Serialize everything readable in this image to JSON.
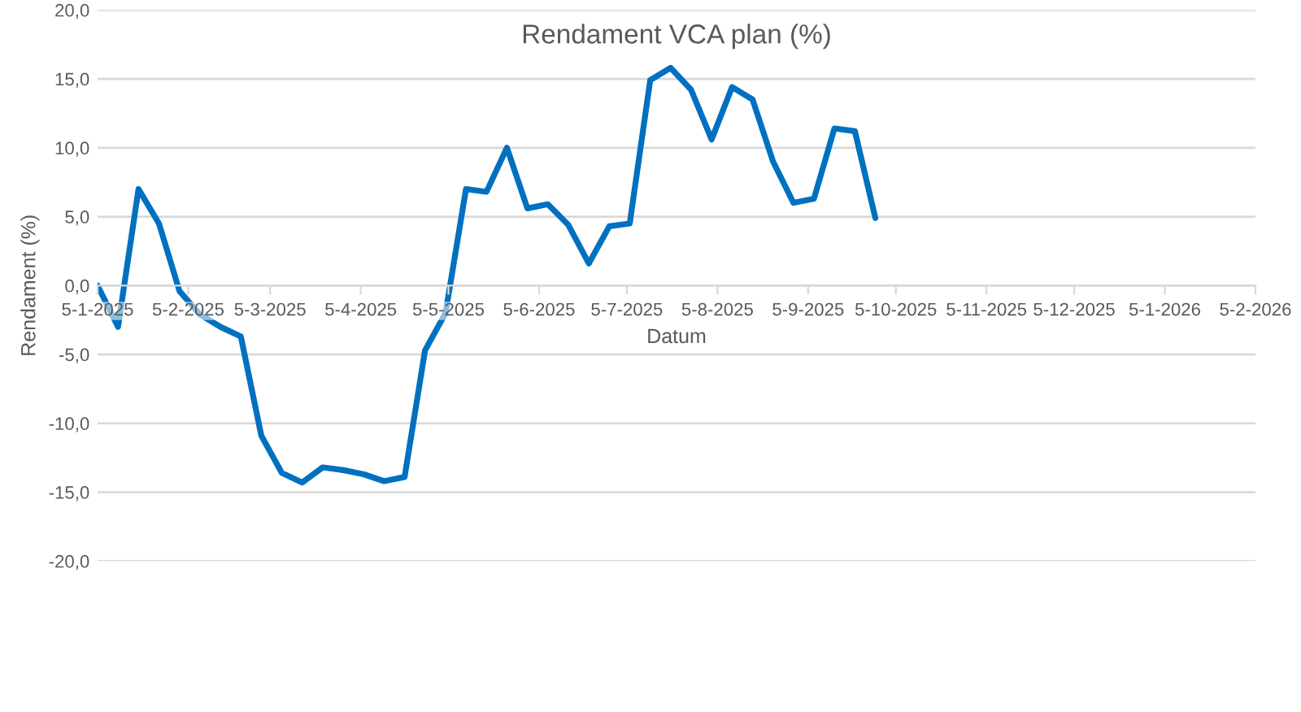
{
  "chart_data": {
    "type": "line",
    "title": "Rendament VCA plan (%)",
    "xlabel": "Datum",
    "ylabel": "Rendament (%)",
    "x": [
      "2025-01-05",
      "2025-01-12",
      "2025-01-19",
      "2025-01-26",
      "2025-02-02",
      "2025-02-09",
      "2025-02-16",
      "2025-02-23",
      "2025-03-02",
      "2025-03-09",
      "2025-03-16",
      "2025-03-23",
      "2025-03-30",
      "2025-04-06",
      "2025-04-13",
      "2025-04-20",
      "2025-04-27",
      "2025-05-04",
      "2025-05-11",
      "2025-05-18",
      "2025-05-25",
      "2025-06-01",
      "2025-06-08",
      "2025-06-15",
      "2025-06-22",
      "2025-06-29",
      "2025-07-06",
      "2025-07-13",
      "2025-07-20",
      "2025-07-27",
      "2025-08-03",
      "2025-08-10",
      "2025-08-17",
      "2025-08-24",
      "2025-08-31",
      "2025-09-07",
      "2025-09-14",
      "2025-09-21",
      "2025-09-28"
    ],
    "series": [
      {
        "color": "#0070c0",
        "values": [
          0.0,
          -3.0,
          7.0,
          4.5,
          -0.4,
          -2.1,
          -3.0,
          -3.7,
          -10.9,
          -13.6,
          -14.3,
          -13.2,
          -13.4,
          -13.7,
          -14.2,
          -13.9,
          -4.7,
          -2.0,
          7.0,
          6.8,
          10.0,
          5.6,
          5.9,
          4.4,
          1.6,
          4.3,
          4.5,
          14.9,
          15.8,
          14.2,
          10.6,
          14.4,
          13.5,
          9.0,
          6.0,
          6.3,
          11.4,
          11.2,
          4.9
        ]
      }
    ],
    "xlim": [
      "2025-01-05",
      "2026-02-05"
    ],
    "xticks": [
      {
        "value": "2025-01-05",
        "label": "5-1-2025"
      },
      {
        "value": "2025-02-05",
        "label": "5-2-2025"
      },
      {
        "value": "2025-03-05",
        "label": "5-3-2025"
      },
      {
        "value": "2025-04-05",
        "label": "5-4-2025"
      },
      {
        "value": "2025-05-05",
        "label": "5-5-2025"
      },
      {
        "value": "2025-06-05",
        "label": "5-6-2025"
      },
      {
        "value": "2025-07-05",
        "label": "5-7-2025"
      },
      {
        "value": "2025-08-05",
        "label": "5-8-2025"
      },
      {
        "value": "2025-09-05",
        "label": "5-9-2025"
      },
      {
        "value": "2025-10-05",
        "label": "5-10-2025"
      },
      {
        "value": "2025-11-05",
        "label": "5-11-2025"
      },
      {
        "value": "2025-12-05",
        "label": "5-12-2025"
      },
      {
        "value": "2026-01-05",
        "label": "5-1-2026"
      },
      {
        "value": "2026-02-05",
        "label": "5-2-2026"
      }
    ],
    "ylim": [
      -20,
      20
    ],
    "yticks": [
      {
        "value": -20,
        "label": "-20,0"
      },
      {
        "value": -15,
        "label": "-15,0"
      },
      {
        "value": -10,
        "label": "-10,0"
      },
      {
        "value": -5,
        "label": "-5,0"
      },
      {
        "value": 0,
        "label": "0,0"
      },
      {
        "value": 5,
        "label": "5,0"
      },
      {
        "value": 10,
        "label": "10,0"
      },
      {
        "value": 15,
        "label": "15,0"
      },
      {
        "value": 20,
        "label": "20,0"
      }
    ],
    "grid": "y",
    "marker": "none",
    "line_style": "solid"
  }
}
